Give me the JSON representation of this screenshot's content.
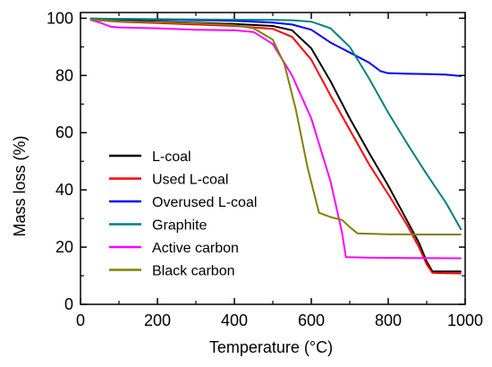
{
  "chart_data": {
    "type": "line",
    "xlabel": "Temperature (",
    "xlabel_unit": "°C",
    "xlabel_close": ")",
    "ylabel": "Mass loss (%)",
    "xlim": [
      0,
      1000
    ],
    "ylim": [
      0,
      102
    ],
    "x_ticks": [
      0,
      200,
      400,
      600,
      800,
      1000
    ],
    "y_ticks": [
      0,
      20,
      40,
      60,
      80,
      100
    ],
    "x_tick_labels": [
      "0",
      "200",
      "400",
      "600",
      "800",
      "1000"
    ],
    "y_tick_labels": [
      "0",
      "20",
      "40",
      "60",
      "80",
      "100"
    ],
    "grid": false,
    "legend_position": "bottom-left",
    "series": [
      {
        "name": "L-coal",
        "color": "#000000",
        "points": [
          [
            25,
            99.8
          ],
          [
            100,
            99.3
          ],
          [
            200,
            98.8
          ],
          [
            300,
            98.4
          ],
          [
            400,
            98.0
          ],
          [
            500,
            97.3
          ],
          [
            550,
            95.8
          ],
          [
            600,
            89.5
          ],
          [
            650,
            78.0
          ],
          [
            700,
            65.0
          ],
          [
            750,
            53.0
          ],
          [
            800,
            41.5
          ],
          [
            850,
            29.0
          ],
          [
            880,
            21.5
          ],
          [
            900,
            15.0
          ],
          [
            915,
            11.5
          ],
          [
            950,
            11.5
          ],
          [
            990,
            11.5
          ]
        ]
      },
      {
        "name": "Used L-coal",
        "color": "#ff0000",
        "points": [
          [
            25,
            99.5
          ],
          [
            100,
            98.8
          ],
          [
            200,
            98.3
          ],
          [
            300,
            97.8
          ],
          [
            400,
            97.3
          ],
          [
            500,
            96.3
          ],
          [
            550,
            93.5
          ],
          [
            600,
            85.5
          ],
          [
            650,
            73.0
          ],
          [
            700,
            61.0
          ],
          [
            750,
            49.0
          ],
          [
            800,
            38.5
          ],
          [
            850,
            27.5
          ],
          [
            880,
            20.0
          ],
          [
            900,
            14.0
          ],
          [
            915,
            11.0
          ],
          [
            950,
            10.9
          ],
          [
            990,
            10.8
          ]
        ]
      },
      {
        "name": "Overused L-coal",
        "color": "#0000ff",
        "points": [
          [
            25,
            99.9
          ],
          [
            100,
            99.7
          ],
          [
            200,
            99.5
          ],
          [
            300,
            99.3
          ],
          [
            400,
            99.1
          ],
          [
            500,
            98.5
          ],
          [
            550,
            97.8
          ],
          [
            600,
            96.0
          ],
          [
            650,
            91.5
          ],
          [
            700,
            88.0
          ],
          [
            750,
            84.5
          ],
          [
            780,
            81.5
          ],
          [
            800,
            80.8
          ],
          [
            850,
            80.6
          ],
          [
            900,
            80.5
          ],
          [
            950,
            80.3
          ],
          [
            990,
            79.8
          ]
        ]
      },
      {
        "name": "Graphite",
        "color": "#008080",
        "points": [
          [
            25,
            99.9
          ],
          [
            100,
            99.8
          ],
          [
            200,
            99.7
          ],
          [
            300,
            99.6
          ],
          [
            400,
            99.5
          ],
          [
            500,
            99.4
          ],
          [
            550,
            99.3
          ],
          [
            600,
            98.8
          ],
          [
            650,
            96.5
          ],
          [
            700,
            90.0
          ],
          [
            750,
            79.0
          ],
          [
            800,
            67.0
          ],
          [
            850,
            56.0
          ],
          [
            900,
            45.5
          ],
          [
            950,
            35.5
          ],
          [
            990,
            26.0
          ]
        ]
      },
      {
        "name": "Active carbon",
        "color": "#ff00ff",
        "points": [
          [
            25,
            99.5
          ],
          [
            50,
            98.5
          ],
          [
            80,
            97.0
          ],
          [
            100,
            96.8
          ],
          [
            200,
            96.5
          ],
          [
            300,
            96.0
          ],
          [
            400,
            95.8
          ],
          [
            450,
            95.2
          ],
          [
            500,
            91.0
          ],
          [
            550,
            80.0
          ],
          [
            600,
            65.0
          ],
          [
            650,
            43.0
          ],
          [
            680,
            25.0
          ],
          [
            690,
            16.5
          ],
          [
            750,
            16.3
          ],
          [
            850,
            16.2
          ],
          [
            990,
            16.1
          ]
        ]
      },
      {
        "name": "Black carbon",
        "color": "#808000",
        "points": [
          [
            25,
            99.5
          ],
          [
            100,
            99.0
          ],
          [
            200,
            98.6
          ],
          [
            300,
            98.2
          ],
          [
            400,
            97.6
          ],
          [
            450,
            96.5
          ],
          [
            500,
            92.5
          ],
          [
            530,
            84.0
          ],
          [
            560,
            68.0
          ],
          [
            590,
            48.0
          ],
          [
            620,
            32.0
          ],
          [
            650,
            30.5
          ],
          [
            680,
            29.5
          ],
          [
            700,
            27.0
          ],
          [
            720,
            24.8
          ],
          [
            800,
            24.5
          ],
          [
            900,
            24.4
          ],
          [
            990,
            24.4
          ]
        ]
      }
    ]
  }
}
